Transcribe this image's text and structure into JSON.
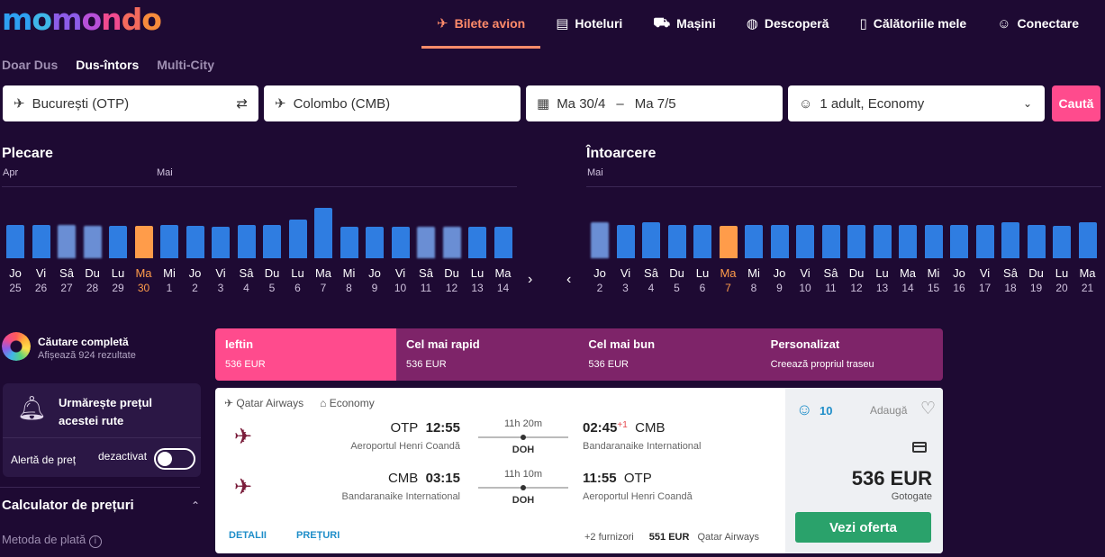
{
  "logo": "momondo",
  "nav": [
    {
      "icon": "✈",
      "label": "Bilete avion",
      "active": true
    },
    {
      "icon": "▤",
      "label": "Hoteluri"
    },
    {
      "icon": "⛟",
      "label": "Mașini"
    },
    {
      "icon": "◍",
      "label": "Descoperă"
    },
    {
      "icon": "▯",
      "label": "Călătoriile mele"
    },
    {
      "icon": "☺",
      "label": "Conectare"
    }
  ],
  "trip_types": [
    "Doar Dus",
    "Dus-întors",
    "Multi-City"
  ],
  "search": {
    "origin": "București (OTP)",
    "destination": "Colombo (CMB)",
    "date_from": "Ma 30/4",
    "date_sep": "–",
    "date_to": "Ma 7/5",
    "passengers": "1 adult, Economy",
    "button": "Caută"
  },
  "departure_calendar": {
    "title": "Plecare",
    "month1": "Apr",
    "month2": "Mai",
    "selected_index": 5,
    "days": [
      {
        "d": "Jo",
        "n": "25",
        "h": 0.52,
        "blur": false
      },
      {
        "d": "Vi",
        "n": "26",
        "h": 0.52,
        "blur": false
      },
      {
        "d": "Sâ",
        "n": "27",
        "h": 0.52,
        "blur": true
      },
      {
        "d": "Du",
        "n": "28",
        "h": 0.5,
        "blur": true
      },
      {
        "d": "Lu",
        "n": "29",
        "h": 0.5,
        "blur": false
      },
      {
        "d": "Ma",
        "n": "30",
        "h": 0.5,
        "blur": false
      },
      {
        "d": "Mi",
        "n": "1",
        "h": 0.52,
        "blur": false
      },
      {
        "d": "Jo",
        "n": "2",
        "h": 0.5,
        "blur": false
      },
      {
        "d": "Vi",
        "n": "3",
        "h": 0.48,
        "blur": false
      },
      {
        "d": "Sâ",
        "n": "4",
        "h": 0.52,
        "blur": false
      },
      {
        "d": "Du",
        "n": "5",
        "h": 0.52,
        "blur": false
      },
      {
        "d": "Lu",
        "n": "6",
        "h": 0.6,
        "blur": false
      },
      {
        "d": "Ma",
        "n": "7",
        "h": 0.78,
        "blur": false
      },
      {
        "d": "Mi",
        "n": "8",
        "h": 0.48,
        "blur": false
      },
      {
        "d": "Jo",
        "n": "9",
        "h": 0.48,
        "blur": false
      },
      {
        "d": "Vi",
        "n": "10",
        "h": 0.48,
        "blur": false
      },
      {
        "d": "Sâ",
        "n": "11",
        "h": 0.48,
        "blur": true
      },
      {
        "d": "Du",
        "n": "12",
        "h": 0.48,
        "blur": true
      },
      {
        "d": "Lu",
        "n": "13",
        "h": 0.48,
        "blur": false
      },
      {
        "d": "Ma",
        "n": "14",
        "h": 0.48,
        "blur": false
      }
    ]
  },
  "return_calendar": {
    "title": "Întoarcere",
    "month1": "Mai",
    "selected_index": 5,
    "days": [
      {
        "d": "Jo",
        "n": "2",
        "h": 0.55,
        "blur": true
      },
      {
        "d": "Vi",
        "n": "3",
        "h": 0.52,
        "blur": false
      },
      {
        "d": "Sâ",
        "n": "4",
        "h": 0.55,
        "blur": false
      },
      {
        "d": "Du",
        "n": "5",
        "h": 0.52,
        "blur": false
      },
      {
        "d": "Lu",
        "n": "6",
        "h": 0.52,
        "blur": false
      },
      {
        "d": "Ma",
        "n": "7",
        "h": 0.5,
        "blur": false
      },
      {
        "d": "Mi",
        "n": "8",
        "h": 0.52,
        "blur": false
      },
      {
        "d": "Jo",
        "n": "9",
        "h": 0.52,
        "blur": false
      },
      {
        "d": "Vi",
        "n": "10",
        "h": 0.52,
        "blur": false
      },
      {
        "d": "Sâ",
        "n": "11",
        "h": 0.52,
        "blur": false
      },
      {
        "d": "Du",
        "n": "12",
        "h": 0.52,
        "blur": false
      },
      {
        "d": "Lu",
        "n": "13",
        "h": 0.52,
        "blur": false
      },
      {
        "d": "Ma",
        "n": "14",
        "h": 0.52,
        "blur": false
      },
      {
        "d": "Mi",
        "n": "15",
        "h": 0.52,
        "blur": false
      },
      {
        "d": "Jo",
        "n": "16",
        "h": 0.52,
        "blur": false
      },
      {
        "d": "Vi",
        "n": "17",
        "h": 0.52,
        "blur": false
      },
      {
        "d": "Sâ",
        "n": "18",
        "h": 0.55,
        "blur": false
      },
      {
        "d": "Du",
        "n": "19",
        "h": 0.52,
        "blur": false
      },
      {
        "d": "Lu",
        "n": "20",
        "h": 0.5,
        "blur": false
      },
      {
        "d": "Ma",
        "n": "21",
        "h": 0.55,
        "blur": false
      }
    ]
  },
  "full_search": {
    "title": "Căutare completă",
    "subtitle": "Afișează 924 rezultate"
  },
  "price_alert": {
    "title": "Urmărește prețul acestei rute",
    "label": "Alertă de preț",
    "state": "dezactivat"
  },
  "calculator": {
    "title": "Calculator de prețuri",
    "payment_label": "Metoda de plată"
  },
  "sort_tabs": [
    {
      "label": "Ieftin",
      "sub": "536 EUR",
      "active": true
    },
    {
      "label": "Cel mai rapid",
      "sub": "536 EUR"
    },
    {
      "label": "Cel mai bun",
      "sub": "536 EUR"
    },
    {
      "label": "Personalizat",
      "sub": "Creează propriul traseu"
    }
  ],
  "result": {
    "airline": "Qatar Airways",
    "cabin": "Economy",
    "legs": [
      {
        "from_code": "OTP",
        "dep": "12:55",
        "from_airport": "Aeroportul Henri Coandă",
        "duration": "11h 20m",
        "stop": "DOH",
        "arr": "02:45",
        "plus": "+1",
        "to_code": "CMB",
        "to_airport": "Bandaranaike International"
      },
      {
        "from_code": "CMB",
        "dep": "03:15",
        "from_airport": "Bandaranaike International",
        "duration": "11h 10m",
        "stop": "DOH",
        "arr": "11:55",
        "plus": "",
        "to_code": "OTP",
        "to_airport": "Aeroportul Henri Coandă"
      }
    ],
    "details": "DETALII",
    "prices": "PREȚURI",
    "providers": "+2 furnizori",
    "alt_price": "551 EUR",
    "alt_vendor": "Qatar Airways",
    "score": "10",
    "add": "Adaugă",
    "price": "536 EUR",
    "vendor": "Gotogate",
    "offer": "Vezi oferta"
  }
}
